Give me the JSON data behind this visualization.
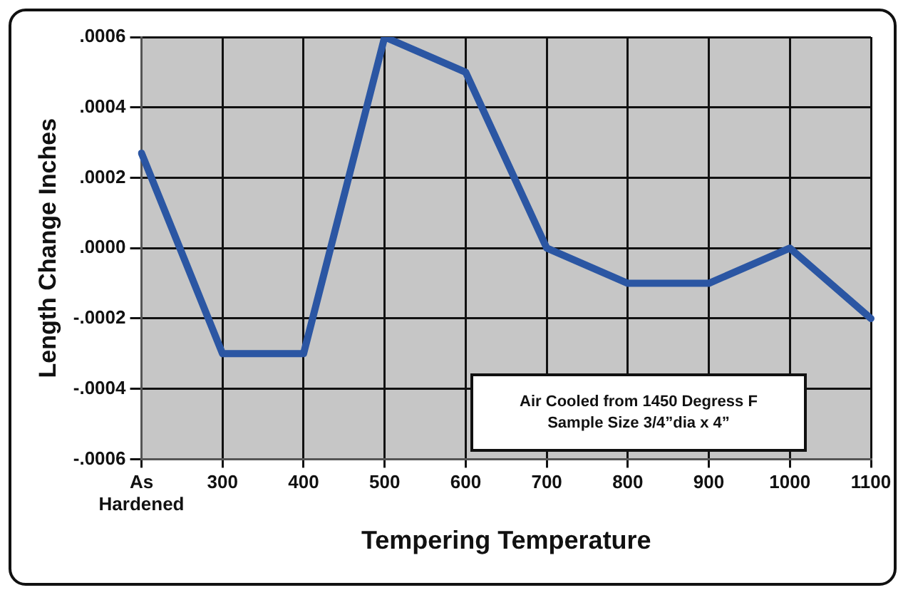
{
  "chart_data": {
    "type": "line",
    "xlabel": "Tempering Temperature",
    "ylabel": "Length Change Inches",
    "categories": [
      "As Hardened",
      "300",
      "400",
      "500",
      "600",
      "700",
      "800",
      "900",
      "1000",
      "1100"
    ],
    "series": [
      {
        "color": "#2b56a3",
        "values": [
          0.00027,
          -0.0003,
          -0.0003,
          0.0006,
          0.0005,
          0.0,
          -0.0001,
          -0.0001,
          0.0,
          -0.0002
        ]
      }
    ],
    "ylim": [
      -0.0006,
      0.0006
    ],
    "yticks": [
      {
        "value": -0.0006,
        "label": "-.0006"
      },
      {
        "value": -0.0004,
        "label": "-.0004"
      },
      {
        "value": -0.0002,
        "label": "-.0002"
      },
      {
        "value": 0,
        "label": ".0000"
      },
      {
        "value": 0.0002,
        "label": ".0002"
      },
      {
        "value": 0.0004,
        "label": ".0004"
      },
      {
        "value": 0.0006,
        "label": ".0006"
      }
    ],
    "grid": true,
    "legend": false,
    "marker": "none",
    "line_style": "solid",
    "annotations": [
      "Air Cooled from 1450 Degress F",
      "Sample Size 3/4”dia x 4”"
    ]
  }
}
